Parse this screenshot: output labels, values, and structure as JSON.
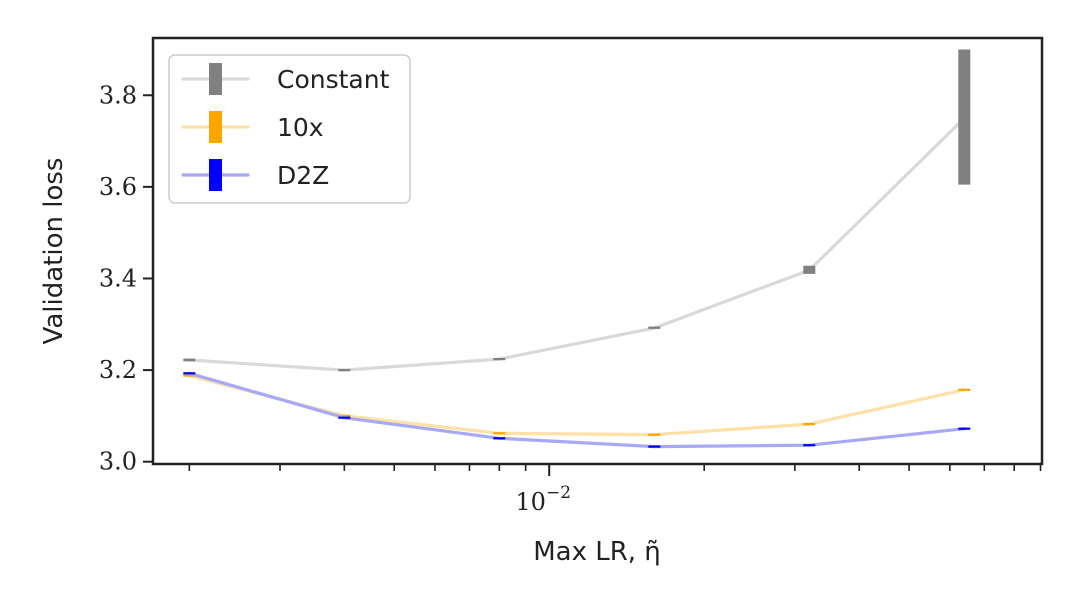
{
  "chart_data": {
    "type": "line",
    "xlabel": "Max LR, η̃",
    "ylabel": "Validation loss",
    "xscale": "log",
    "ylim": [
      2.995,
      3.925
    ],
    "xlim": [
      0.0017,
      0.0906
    ],
    "yticks": [
      3.0,
      3.2,
      3.4,
      3.6,
      3.8
    ],
    "ytick_labels": [
      "3.0",
      "3.2",
      "3.4",
      "3.6",
      "3.8"
    ],
    "xtick_major": [
      0.01
    ],
    "xtick_major_label_base": "10",
    "xtick_major_label_exp": "−2",
    "x": [
      0.002,
      0.004,
      0.008,
      0.016,
      0.032,
      0.064
    ],
    "grid": false,
    "legend_position": "top-left",
    "series": [
      {
        "name": "Constant",
        "values": [
          3.222,
          3.2,
          3.224,
          3.292,
          3.418,
          3.75
        ],
        "err_low": [
          3.219,
          3.198,
          3.222,
          3.29,
          3.41,
          3.605
        ],
        "err_high": [
          3.225,
          3.202,
          3.226,
          3.295,
          3.428,
          3.9
        ],
        "line_color": "#d9d9d9",
        "marker_color": "#808080"
      },
      {
        "name": "10x",
        "values": [
          3.188,
          3.1,
          3.062,
          3.059,
          3.082,
          3.157
        ],
        "err_low": [
          3.186,
          3.098,
          3.06,
          3.057,
          3.08,
          3.155
        ],
        "err_high": [
          3.19,
          3.102,
          3.064,
          3.061,
          3.084,
          3.159
        ],
        "line_color": "#ffe0a6",
        "marker_color": "#ffa500"
      },
      {
        "name": "D2Z",
        "values": [
          3.193,
          3.096,
          3.051,
          3.033,
          3.036,
          3.072
        ],
        "err_low": [
          3.191,
          3.094,
          3.049,
          3.031,
          3.034,
          3.07
        ],
        "err_high": [
          3.195,
          3.098,
          3.053,
          3.035,
          3.038,
          3.074
        ],
        "line_color": "#a8a8f8",
        "marker_color": "#0000ff"
      }
    ]
  }
}
